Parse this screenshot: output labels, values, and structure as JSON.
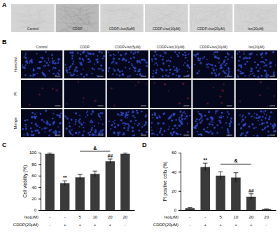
{
  "figure": {
    "panel_labels": [
      "A",
      "B",
      "C",
      "D"
    ],
    "panel_a": {
      "columns": [
        "Control",
        "CDDP",
        "CDDP+Iso(5μM)",
        "CDDP+Iso(10μM)",
        "CDDP+Iso(20μM)",
        "Iso(20μM)"
      ]
    },
    "panel_b": {
      "columns": [
        "Control",
        "CDDP",
        "CDDP+Iso(5μM)",
        "CDDP+Iso(10μM)",
        "CDDP+Iso(20μM)",
        "Iso(20μM)"
      ],
      "rows": [
        "Hoechst",
        "PI",
        "Merge"
      ]
    }
  },
  "chart_data": [
    {
      "type": "bar",
      "y_label": "Cell viability (%)",
      "categories": [
        null,
        null,
        null,
        null,
        null,
        null
      ],
      "values": [
        98,
        47,
        57,
        63,
        85,
        98
      ],
      "errors": [
        1.5,
        4,
        5,
        5,
        4,
        1.5
      ],
      "color": "#3a3a3a",
      "ylim": [
        0,
        100
      ],
      "yticks": [
        0,
        20,
        40,
        60,
        80,
        100
      ],
      "x_rows": [
        {
          "label": "Iso(μM)",
          "values": [
            "-",
            "-",
            "5",
            "10",
            "20",
            "20"
          ]
        },
        {
          "label": "CDDP(20μM)",
          "values": [
            "-",
            "+",
            "+",
            "+",
            "+",
            "-"
          ]
        }
      ],
      "annotations": [
        {
          "text": "**",
          "index": 1
        },
        {
          "text": "##",
          "index": 4
        }
      ],
      "brackets": [
        {
          "text": "&",
          "from": 2,
          "to": 4
        }
      ]
    },
    {
      "type": "bar",
      "y_label": "PI positive cells (%)",
      "categories": [
        null,
        null,
        null,
        null,
        null,
        null
      ],
      "values": [
        2,
        45,
        36,
        34,
        14,
        1
      ],
      "errors": [
        0.5,
        4,
        4,
        5,
        3,
        0.3
      ],
      "color": "#3a3a3a",
      "ylim": [
        0,
        60
      ],
      "yticks": [
        0,
        20,
        40,
        60
      ],
      "x_rows": [
        {
          "label": "Iso(μM)",
          "values": [
            "-",
            "-",
            "5",
            "10",
            "20",
            "20"
          ]
        },
        {
          "label": "CDDP(20μM)",
          "values": [
            "-",
            "+",
            "+",
            "+",
            "+",
            "-"
          ]
        }
      ],
      "annotations": [
        {
          "text": "**",
          "index": 1
        },
        {
          "text": "##",
          "index": 4
        }
      ],
      "brackets": [
        {
          "text": "&",
          "from": 2,
          "to": 4
        }
      ]
    }
  ]
}
